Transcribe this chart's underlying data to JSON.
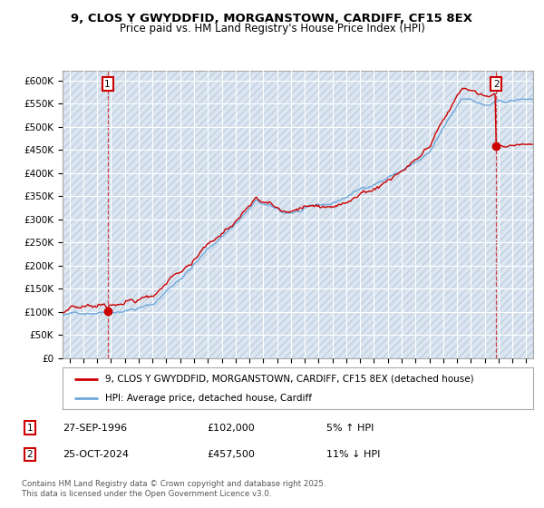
{
  "title_line1": "9, CLOS Y GWYDDFID, MORGANSTOWN, CARDIFF, CF15 8EX",
  "title_line2": "Price paid vs. HM Land Registry's House Price Index (HPI)",
  "bg_color": "#dce6f1",
  "hatch_color": "#c0cfe0",
  "sale1_date": 1996.75,
  "sale1_price": 102000,
  "sale2_date": 2024.82,
  "sale2_price": 457500,
  "legend_entry1": "9, CLOS Y GWYDDFID, MORGANSTOWN, CARDIFF, CF15 8EX (detached house)",
  "legend_entry2": "HPI: Average price, detached house, Cardiff",
  "annotation1_date": "27-SEP-1996",
  "annotation1_price": "£102,000",
  "annotation1_hpi": "5% ↑ HPI",
  "annotation2_date": "25-OCT-2024",
  "annotation2_price": "£457,500",
  "annotation2_hpi": "11% ↓ HPI",
  "footer": "Contains HM Land Registry data © Crown copyright and database right 2025.\nThis data is licensed under the Open Government Licence v3.0.",
  "hpi_line_color": "#6fa8dc",
  "price_line_color": "#cc0000",
  "ylim_min": 0,
  "ylim_max": 620000,
  "xlim_min": 1993.5,
  "xlim_max": 2027.5
}
